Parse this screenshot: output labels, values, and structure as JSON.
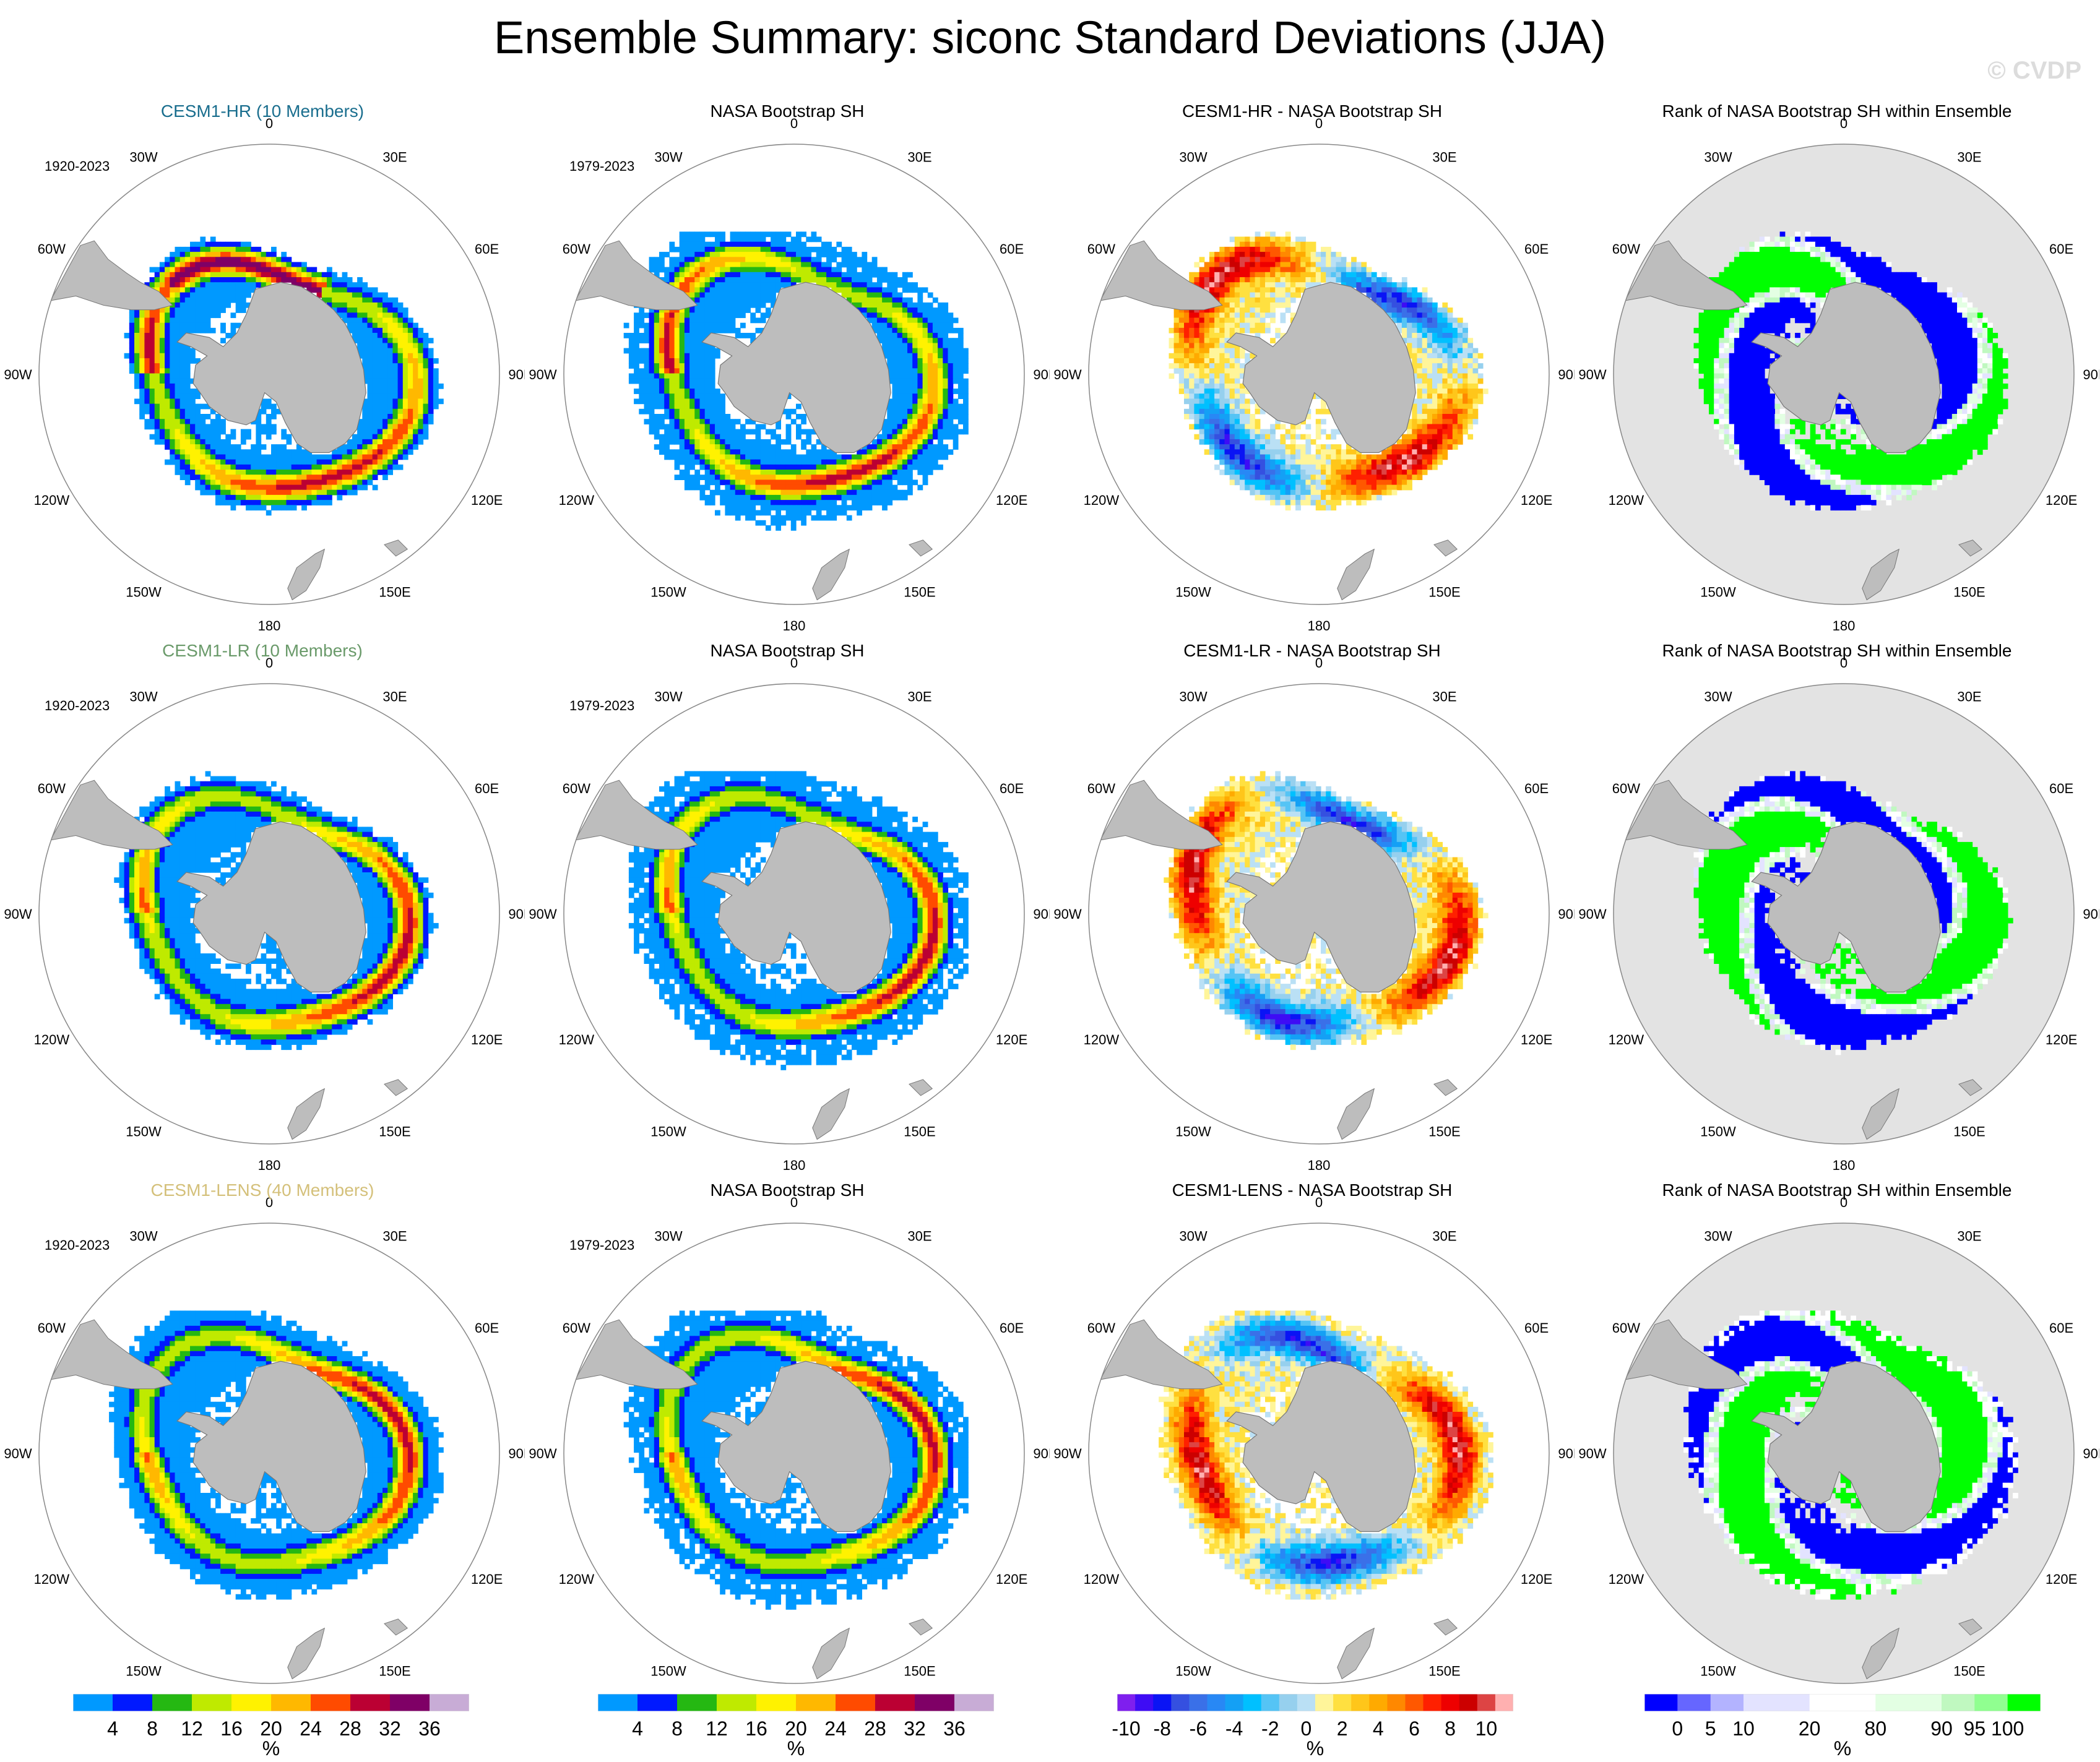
{
  "title": "Ensemble Summary: siconc Standard Deviations (JJA)",
  "watermark": "© CVDP",
  "longitude_labels": [
    "0",
    "30E",
    "60E",
    "90E",
    "120E",
    "150E",
    "180",
    "150W",
    "120W",
    "90W",
    "60W",
    "30W"
  ],
  "colors": {
    "title_hr": "#1a6e8e",
    "title_lr": "#6a9a6a",
    "title_lens": "#d4c07a",
    "land": "#bdbdbd",
    "rank_background": "#e3e3e3"
  },
  "rows": [
    {
      "model": "CESM1-HR",
      "panels": [
        {
          "title": "CESM1-HR (10 Members)",
          "years": "1920-2023",
          "kind": "std_model",
          "title_color": "#1a6e8e"
        },
        {
          "title": "NASA Bootstrap SH",
          "years": "1979-2023",
          "kind": "std_obs",
          "title_color": "#000000"
        },
        {
          "title": "CESM1-HR - NASA Bootstrap SH",
          "years": "",
          "kind": "diff",
          "title_color": "#000000"
        },
        {
          "title": "Rank of NASA Bootstrap SH within Ensemble",
          "years": "",
          "kind": "rank",
          "title_color": "#000000"
        }
      ]
    },
    {
      "model": "CESM1-LR",
      "panels": [
        {
          "title": "CESM1-LR (10 Members)",
          "years": "1920-2023",
          "kind": "std_model",
          "title_color": "#6a9a6a"
        },
        {
          "title": "NASA Bootstrap SH",
          "years": "1979-2023",
          "kind": "std_obs",
          "title_color": "#000000"
        },
        {
          "title": "CESM1-LR - NASA Bootstrap SH",
          "years": "",
          "kind": "diff",
          "title_color": "#000000"
        },
        {
          "title": "Rank of NASA Bootstrap SH within Ensemble",
          "years": "",
          "kind": "rank",
          "title_color": "#000000"
        }
      ]
    },
    {
      "model": "CESM1-LENS",
      "panels": [
        {
          "title": "CESM1-LENS (40 Members)",
          "years": "1920-2023",
          "kind": "std_model",
          "title_color": "#d4c07a"
        },
        {
          "title": "NASA Bootstrap SH",
          "years": "1979-2023",
          "kind": "std_obs",
          "title_color": "#000000"
        },
        {
          "title": "CESM1-LENS - NASA Bootstrap SH",
          "years": "",
          "kind": "diff",
          "title_color": "#000000"
        },
        {
          "title": "Rank of NASA Bootstrap SH within Ensemble",
          "years": "",
          "kind": "rank",
          "title_color": "#000000"
        }
      ]
    }
  ],
  "chart_data": [
    {
      "type": "heatmap",
      "projection": "south-polar-stereographic",
      "variable": "siconc standard deviation",
      "season": "JJA",
      "colorbar": {
        "unit": "%",
        "levels": [
          4,
          8,
          12,
          16,
          20,
          24,
          28,
          32,
          36
        ],
        "tick_labels": [
          "4",
          "8",
          "12",
          "16",
          "20",
          "24",
          "28",
          "32",
          "36"
        ],
        "colors": [
          "#0099ff",
          "#0019ff",
          "#25b812",
          "#bfea00",
          "#fff200",
          "#ffb800",
          "#ff4b00",
          "#bb0033",
          "#7f0066",
          "#c8acd6"
        ]
      }
    },
    {
      "type": "heatmap",
      "projection": "south-polar-stereographic",
      "variable": "siconc standard deviation",
      "season": "JJA",
      "colorbar": {
        "unit": "%",
        "levels": [
          4,
          8,
          12,
          16,
          20,
          24,
          28,
          32,
          36
        ],
        "tick_labels": [
          "4",
          "8",
          "12",
          "16",
          "20",
          "24",
          "28",
          "32",
          "36"
        ],
        "colors": [
          "#0099ff",
          "#0019ff",
          "#25b812",
          "#bfea00",
          "#fff200",
          "#ffb800",
          "#ff4b00",
          "#bb0033",
          "#7f0066",
          "#c8acd6"
        ]
      }
    },
    {
      "type": "heatmap",
      "projection": "south-polar-stereographic",
      "variable": "siconc standard deviation difference (model - obs)",
      "season": "JJA",
      "colorbar": {
        "unit": "%",
        "levels": [
          -10,
          -9,
          -8,
          -7,
          -6,
          -5,
          -4,
          -3,
          -2,
          -1,
          0,
          1,
          2,
          3,
          4,
          5,
          6,
          7,
          8,
          9,
          10
        ],
        "tick_labels": [
          "-10",
          "-8",
          "-6",
          "-4",
          "-2",
          "0",
          "2",
          "4",
          "6",
          "8",
          "10"
        ],
        "colors": [
          "#7f1fee",
          "#3e0cf5",
          "#0a14f5",
          "#3550e0",
          "#3a70e8",
          "#2888f5",
          "#14a0f5",
          "#00c0ff",
          "#55c4f5",
          "#96d0ee",
          "#bae0f5",
          "#fff59a",
          "#ffe040",
          "#ffc61a",
          "#ffaa00",
          "#ff8800",
          "#ff5800",
          "#ff2000",
          "#ee0000",
          "#cc0000",
          "#dd4444",
          "#ffb0b0"
        ]
      }
    },
    {
      "type": "heatmap",
      "projection": "south-polar-stereographic",
      "variable": "rank of observations within ensemble",
      "season": "JJA",
      "colorbar": {
        "unit": "%",
        "levels": [
          0,
          5,
          10,
          20,
          80,
          90,
          95,
          100
        ],
        "tick_labels": [
          "0",
          "5",
          "10",
          "20",
          "80",
          "90",
          "95",
          "100"
        ],
        "colors": [
          "#0000ff",
          "#6666ff",
          "#b3b3ff",
          "#e3e3ff",
          "#ffffff",
          "#e3ffe3",
          "#c0f8c0",
          "#90ff90",
          "#00ff00"
        ]
      }
    }
  ]
}
